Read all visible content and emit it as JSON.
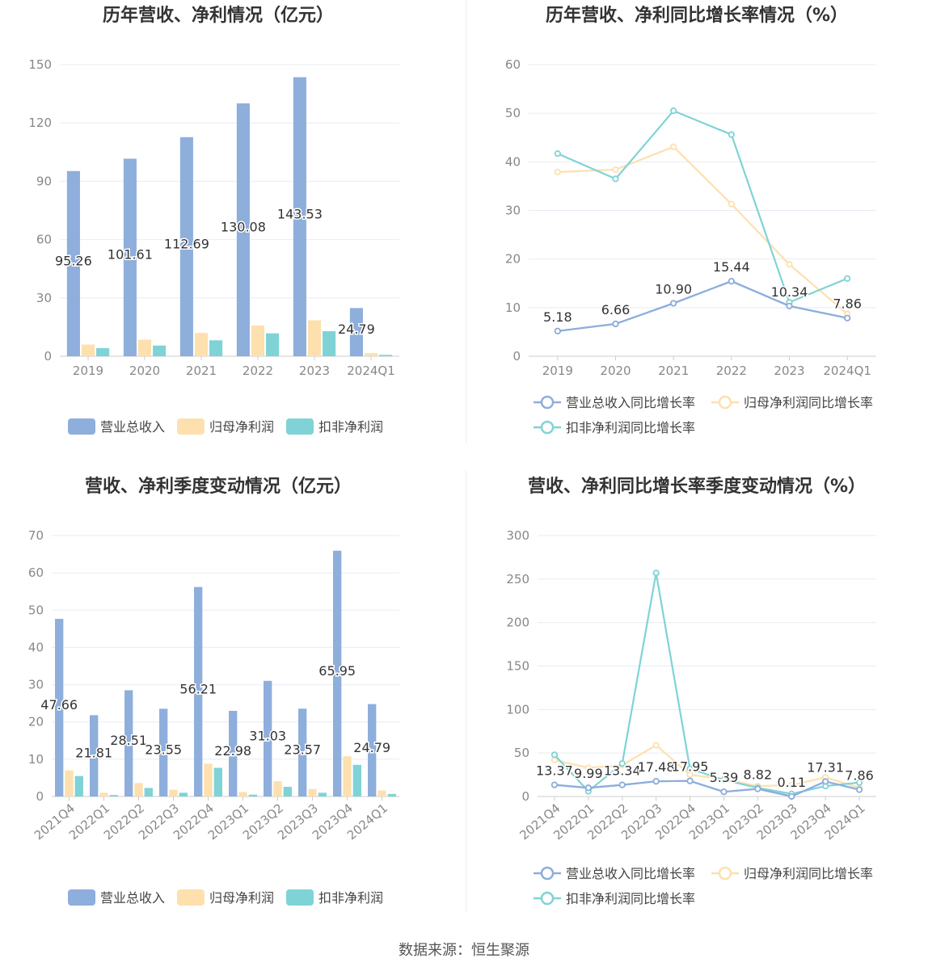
{
  "colors": {
    "revenue": "#8eaedc",
    "net_profit": "#fde0ae",
    "deducted_profit": "#7fd3d6",
    "axis_text": "#888888",
    "grid": "#e8ebf3",
    "title": "#333333"
  },
  "footer": "数据来源：恒生聚源",
  "chart_data": [
    {
      "type": "bar",
      "title": "历年营收、净利情况（亿元）",
      "categories": [
        "2019",
        "2020",
        "2021",
        "2022",
        "2023",
        "2024Q1"
      ],
      "ylim": [
        0,
        150
      ],
      "yticks": [
        0,
        30,
        60,
        90,
        120,
        150
      ],
      "series": [
        {
          "name": "营业总收入",
          "values": [
            95.26,
            101.61,
            112.69,
            130.08,
            143.53,
            24.79
          ],
          "labels": [
            "95.26",
            "101.61",
            "112.69",
            "130.08",
            "143.53",
            "24.79"
          ]
        },
        {
          "name": "归母净利润",
          "values": [
            6.0,
            8.5,
            12.0,
            15.8,
            18.5,
            1.6
          ]
        },
        {
          "name": "扣非净利润",
          "values": [
            4.2,
            5.5,
            8.2,
            11.8,
            12.9,
            0.7
          ]
        }
      ],
      "legend": [
        "营业总收入",
        "归母净利润",
        "扣非净利润"
      ]
    },
    {
      "type": "line",
      "title": "历年营收、净利同比增长率情况（%）",
      "categories": [
        "2019",
        "2020",
        "2021",
        "2022",
        "2023",
        "2024Q1"
      ],
      "ylim": [
        0,
        60
      ],
      "yticks": [
        0,
        10,
        20,
        30,
        40,
        50,
        60
      ],
      "series": [
        {
          "name": "营业总收入同比增长率",
          "values": [
            5.18,
            6.66,
            10.9,
            15.44,
            10.34,
            7.86
          ],
          "labels": [
            "5.18",
            "6.66",
            "10.90",
            "15.44",
            "10.34",
            "7.86"
          ]
        },
        {
          "name": "归母净利润同比增长率",
          "values": [
            37.9,
            38.4,
            43.1,
            31.3,
            18.9,
            8.7
          ]
        },
        {
          "name": "扣非净利润同比增长率",
          "values": [
            41.7,
            36.5,
            50.5,
            45.6,
            11.1,
            16.0
          ]
        }
      ],
      "legend": [
        "营业总收入同比增长率",
        "归母净利润同比增长率",
        "扣非净利润同比增长率"
      ]
    },
    {
      "type": "bar",
      "title": "营收、净利季度变动情况（亿元）",
      "categories": [
        "2021Q4",
        "2022Q1",
        "2022Q2",
        "2022Q3",
        "2022Q4",
        "2023Q1",
        "2023Q2",
        "2023Q3",
        "2023Q4",
        "2024Q1"
      ],
      "ylim": [
        0,
        70
      ],
      "yticks": [
        0,
        10,
        20,
        30,
        40,
        50,
        60,
        70
      ],
      "series": [
        {
          "name": "营业总收入",
          "values": [
            47.66,
            21.81,
            28.51,
            23.55,
            56.21,
            22.98,
            31.03,
            23.57,
            65.95,
            24.79
          ],
          "labels": [
            "47.66",
            "21.81",
            "28.51",
            "23.55",
            "56.21",
            "22.98",
            "31.03",
            "23.57",
            "65.95",
            "24.79"
          ]
        },
        {
          "name": "归母净利润",
          "values": [
            7.0,
            1.0,
            3.6,
            1.8,
            8.8,
            1.2,
            4.1,
            2.0,
            10.8,
            1.6
          ]
        },
        {
          "name": "扣非净利润",
          "values": [
            5.5,
            0.4,
            2.3,
            1.0,
            7.7,
            0.5,
            2.6,
            1.0,
            8.5,
            0.7
          ]
        }
      ],
      "legend": [
        "营业总收入",
        "归母净利润",
        "扣非净利润"
      ]
    },
    {
      "type": "line",
      "title": "营收、净利同比增长率季度变动情况（%）",
      "categories": [
        "2021Q4",
        "2022Q1",
        "2022Q2",
        "2022Q3",
        "2022Q4",
        "2023Q1",
        "2023Q2",
        "2023Q3",
        "2023Q4",
        "2024Q1"
      ],
      "ylim": [
        0,
        300
      ],
      "yticks": [
        0,
        50,
        100,
        150,
        200,
        250,
        300
      ],
      "series": [
        {
          "name": "营业总收入同比增长率",
          "values": [
            13.37,
            9.99,
            13.34,
            17.48,
            17.95,
            5.39,
            8.82,
            0.11,
            17.31,
            7.86
          ],
          "labels": [
            "13.37",
            "9.99",
            "13.34",
            "17.48",
            "17.95",
            "5.39",
            "8.82",
            "0.11",
            "17.31",
            "7.86"
          ]
        },
        {
          "name": "归母净利润同比增长率",
          "values": [
            42,
            33,
            36,
            59,
            25,
            20,
            12,
            13,
            22,
            10
          ]
        },
        {
          "name": "扣非净利润同比增长率",
          "values": [
            48,
            6,
            38,
            257,
            32,
            19,
            10,
            3,
            12,
            16
          ]
        }
      ],
      "legend": [
        "营业总收入同比增长率",
        "归母净利润同比增长率",
        "扣非净利润同比增长率"
      ]
    }
  ]
}
